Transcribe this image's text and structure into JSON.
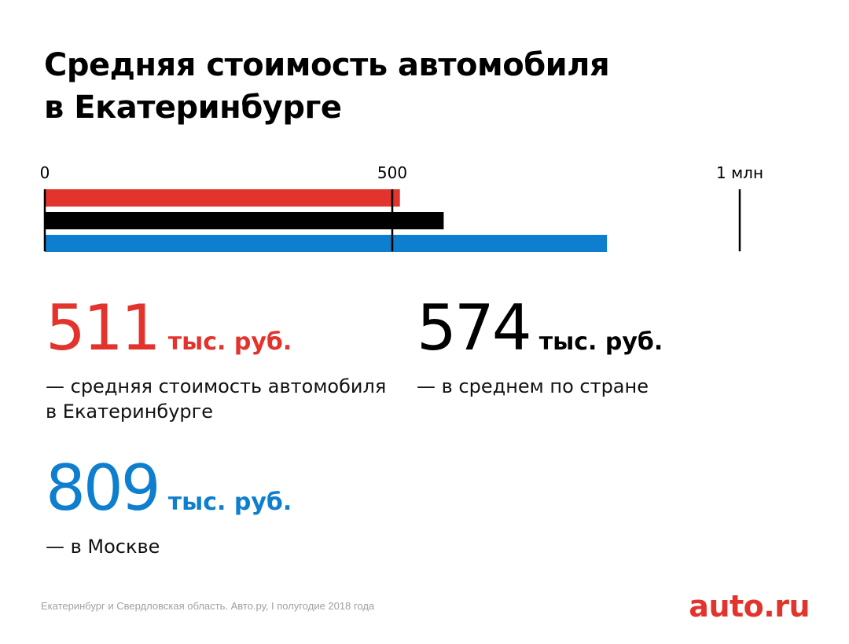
{
  "title_lines": [
    "Средняя стоимость автомобиля",
    "в Екатеринбурге"
  ],
  "chart_data": {
    "type": "bar",
    "orientation": "horizontal",
    "title": "Средняя стоимость автомобиля в Екатеринбурге",
    "xlim": [
      0,
      1000
    ],
    "tick_values": [
      0,
      500,
      1000
    ],
    "tick_labels": [
      "0",
      "500",
      "1 млн"
    ],
    "grid": false,
    "unit": "тыс. руб.",
    "series": [
      {
        "value": 511,
        "color": "#e2342d"
      },
      {
        "value": 574,
        "color": "#000000"
      },
      {
        "value": 809,
        "color": "#0e7ece"
      }
    ]
  },
  "stats": [
    {
      "value": "511",
      "unit": "тыс. руб.",
      "color": "#e2342d",
      "description": "— средняя стоимость автомобиля в Екатеринбурге"
    },
    {
      "value": "574",
      "unit": "тыс. руб.",
      "color": "#000000",
      "description": "— в среднем по стране"
    },
    {
      "value": "809",
      "unit": "тыс. руб.",
      "color": "#0e7ece",
      "description": "— в Москве"
    }
  ],
  "source": "Екатеринбург и Свердловская область. Авто.ру, I полугодие 2018 года",
  "logo": {
    "text": "auto.ru",
    "color": "#e2342d"
  }
}
